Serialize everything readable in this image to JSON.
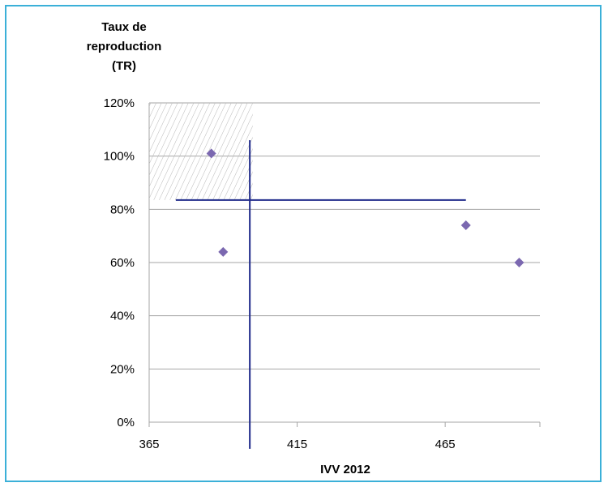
{
  "chart_data": {
    "type": "scatter",
    "title": "",
    "ylabel_lines": [
      "Taux de",
      "reproduction",
      "(TR)"
    ],
    "xlabel": "IVV 2012",
    "xlim": [
      365,
      497
    ],
    "ylim": [
      0,
      1.2
    ],
    "xticks": [
      {
        "value": 365,
        "label": "365"
      },
      {
        "value": 415,
        "label": "415"
      },
      {
        "value": 465,
        "label": "465"
      }
    ],
    "yticks": [
      {
        "value": 0.0,
        "label": "0%"
      },
      {
        "value": 0.2,
        "label": "20%"
      },
      {
        "value": 0.4,
        "label": "40%"
      },
      {
        "value": 0.6,
        "label": "60%"
      },
      {
        "value": 0.8,
        "label": "80%"
      },
      {
        "value": 1.0,
        "label": "100%"
      },
      {
        "value": 1.2,
        "label": "120%"
      }
    ],
    "grid": true,
    "series": [
      {
        "marker": "diamond",
        "color": "#7b68b0",
        "points": [
          {
            "x": 386,
            "y": 1.01
          },
          {
            "x": 390,
            "y": 0.64
          },
          {
            "x": 472,
            "y": 0.74
          },
          {
            "x": 490,
            "y": 0.6
          }
        ]
      }
    ],
    "reference_lines": {
      "color": "#1f2a8a",
      "vertical": {
        "x": 399,
        "y_from": -0.1,
        "y_to": 1.06
      },
      "horizontal": {
        "y": 0.835,
        "x_from": 374,
        "x_to": 472
      }
    },
    "hatched_region": {
      "x_from": 365,
      "x_to": 400,
      "y_from": 0.835,
      "y_to": 1.2
    }
  }
}
